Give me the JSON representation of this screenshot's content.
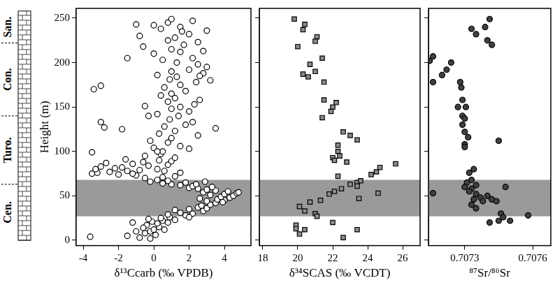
{
  "chart_data": [
    {
      "type": "scatter",
      "x_label": "δ¹³Ccarb (‰ VPDB)",
      "y_label": "Height (m)",
      "marker": "circle",
      "color": "#ffffff",
      "grid": false,
      "xlim": [
        -4.4,
        5.5
      ],
      "xticks": [
        -4,
        -2,
        0,
        2,
        4
      ],
      "ylim": [
        -6,
        261
      ],
      "yticks": [
        0,
        50,
        100,
        150,
        200,
        250
      ],
      "shaded_band": [
        27,
        68
      ],
      "x": [
        -3.6,
        -1.5,
        -0.8,
        -0.5,
        -0.2,
        0.0,
        0.3,
        -0.4,
        0.2,
        -0.1,
        0.5,
        0.8,
        1.2,
        -0.6,
        0.6,
        -1.0,
        0.1,
        0.4,
        -0.3,
        0.9,
        -1.2,
        -0.2,
        1.8,
        2.2,
        1.5,
        2.8,
        2.0,
        3.0,
        2.5,
        1.2,
        2.7,
        3.2,
        0.8,
        2.0,
        3.5,
        3.0,
        4.0,
        3.6,
        4.3,
        3.8,
        4.5,
        3.2,
        4.0,
        4.7,
        4.2,
        3.5,
        2.8,
        3.0,
        2.5,
        2.0,
        4.8,
        3.9,
        2.6,
        3.3,
        2.2,
        1.5,
        1.0,
        0.5,
        1.8,
        -0.2,
        0.8,
        2.4,
        2.9,
        0.2,
        -0.5,
        0.5,
        1.2,
        -1.0,
        -2.0,
        -3.5,
        -3.2,
        -2.5,
        -1.5,
        -0.8,
        0.2,
        -2.2,
        -1.8,
        -3.0,
        -0.3,
        0.8,
        1.5,
        0.6,
        -1.2,
        -2.7,
        -0.6,
        1.0,
        0.3,
        -1.6,
        -3.5,
        -0.5,
        0.4,
        1.2,
        -3.3,
        -1.2,
        0.5,
        0.0,
        1.5,
        2.0,
        0.8,
        -0.2,
        1.0,
        2.5,
        0.3,
        1.2,
        3.5,
        -2.8,
        -1.8,
        0.6,
        1.8,
        2.2,
        -3.0,
        0.9,
        1.4,
        0.2,
        2.0,
        1.0,
        1.5,
        -0.5,
        2.3,
        0.8,
        1.2,
        2.6,
        0.4,
        1.0,
        -3.4,
        -3.0,
        1.8,
        0.6,
        1.5,
        2.4,
        0.9,
        1.3,
        0.2,
        2.8,
        1.0,
        2.0,
        3.0,
        2.5,
        -1.5,
        1.3,
        0.5,
        2.2,
        0.0,
        1.5,
        2.8,
        1.0,
        -0.6,
        1.7,
        2.5,
        0.8,
        1.2,
        -0.8,
        2.0,
        3.0,
        0.4,
        1.5,
        -1.0,
        0.8,
        2.2,
        1.0,
        0.0,
        1.6,
        2.6,
        3.2,
        -0.3,
        0.2
      ],
      "values": [
        4,
        5,
        3,
        8,
        10,
        12,
        15,
        17,
        19,
        21,
        22,
        20,
        23,
        14,
        12,
        10,
        6,
        25,
        24,
        26,
        20,
        2,
        28,
        30,
        31,
        33,
        35,
        36,
        37,
        34,
        39,
        40,
        29,
        26,
        42,
        44,
        45,
        46,
        48,
        49,
        50,
        51,
        52,
        53,
        55,
        56,
        54,
        57,
        58,
        59,
        54,
        43,
        47,
        60,
        61,
        62,
        63,
        64,
        65,
        66,
        67,
        63,
        66,
        68,
        70,
        71,
        72,
        73,
        74,
        75,
        76,
        77,
        78,
        79,
        80,
        81,
        82,
        83,
        84,
        85,
        76,
        78,
        86,
        87,
        88,
        89,
        90,
        91,
        99,
        95,
        97,
        93,
        80,
        75,
        100,
        104,
        106,
        103,
        110,
        112,
        115,
        118,
        120,
        123,
        126,
        127,
        125,
        128,
        130,
        133,
        133,
        136,
        140,
        142,
        145,
        148,
        150,
        151,
        153,
        156,
        160,
        158,
        163,
        165,
        170,
        174,
        168,
        172,
        175,
        178,
        181,
        184,
        186,
        188,
        190,
        192,
        195,
        198,
        205,
        200,
        203,
        205,
        210,
        212,
        213,
        215,
        218,
        220,
        223,
        225,
        228,
        230,
        232,
        236,
        238,
        240,
        243,
        245,
        247,
        249,
        242,
        235,
        185,
        180,
        140,
        100
      ]
    },
    {
      "type": "scatter",
      "x_label": "δ³⁴SCAS (‰ VCDT)",
      "marker": "square",
      "color": "#8c8c8c",
      "grid": false,
      "tick_labels": "x",
      "xlim": [
        17.8,
        27
      ],
      "xticks": [
        18,
        20,
        22,
        24,
        26
      ],
      "ylim": [
        -6,
        261
      ],
      "yticks": [
        0,
        50,
        100,
        150,
        200,
        250
      ],
      "shaded_band": [
        27,
        68
      ],
      "x": [
        19.8,
        20.4,
        20.3,
        20.0,
        21.1,
        21.0,
        20.7,
        21.4,
        20.3,
        20.6,
        21.0,
        21.5,
        21.5,
        21.4,
        21.9,
        22.0,
        22.2,
        22.6,
        23.0,
        23.4,
        22.0,
        22.3,
        22.3,
        22.4,
        22.1,
        22.8,
        25.6,
        24.7,
        24.5,
        24.2,
        22.3,
        23.4,
        23.4,
        23.0,
        23.6,
        22.5,
        22.1,
        24.6,
        23.5,
        21.8,
        20.1,
        20.7,
        21.3,
        21.0,
        21.1,
        22.0,
        20.4,
        19.9,
        19.9,
        20.1,
        20.4,
        22.6,
        23.4
      ],
      "values": [
        249,
        243,
        237,
        218,
        229,
        224,
        198,
        205,
        187,
        184,
        190,
        178,
        158,
        138,
        145,
        150,
        155,
        122,
        118,
        113,
        93,
        107,
        100,
        95,
        90,
        88,
        86,
        82,
        77,
        74,
        72,
        65,
        61,
        63,
        67,
        58,
        55,
        53,
        47,
        52,
        38,
        43,
        45,
        30,
        27,
        20,
        33,
        17,
        13,
        7,
        12,
        3,
        12
      ]
    },
    {
      "type": "scatter",
      "x_label": "⁸⁷Sr/⁸⁶Sr",
      "marker": "circle",
      "color": "#404040",
      "grid": false,
      "tick_labels": "x",
      "xlim": [
        0.70714,
        0.70768
      ],
      "xticks": [
        0.7073,
        0.7076
      ],
      "ylim": [
        -6,
        261
      ],
      "yticks": [
        0,
        50,
        100,
        150,
        200,
        250
      ],
      "shaded_band": [
        27,
        68
      ],
      "x": [
        0.70741,
        0.70739,
        0.70733,
        0.70735,
        0.7074,
        0.70742,
        0.70716,
        0.707145,
        0.70724,
        0.70722,
        0.7072,
        0.70716,
        0.70728,
        0.707285,
        0.70729,
        0.70727,
        0.707305,
        0.70729,
        0.7073,
        0.70729,
        0.7073,
        0.707315,
        0.7073,
        0.7073,
        0.70745,
        0.70716,
        0.70734,
        0.70732,
        0.70733,
        0.70731,
        0.70735,
        0.7073,
        0.70733,
        0.70732,
        0.70735,
        0.7074,
        0.70737,
        0.70734,
        0.70742,
        0.70738,
        0.70733,
        0.70735,
        0.70744,
        0.70748,
        0.70746,
        0.70747,
        0.70745,
        0.7075,
        0.70758,
        0.70741
      ],
      "values": [
        249,
        240,
        238,
        232,
        225,
        220,
        207,
        202,
        200,
        192,
        186,
        178,
        178,
        172,
        158,
        150,
        150,
        140,
        137,
        130,
        122,
        116,
        108,
        105,
        112,
        53,
        80,
        76,
        68,
        65,
        62,
        60,
        58,
        55,
        52,
        50,
        48,
        46,
        46,
        44,
        40,
        36,
        44,
        60,
        30,
        26,
        22,
        22,
        28,
        20
      ]
    }
  ],
  "stratigraphy": [
    {
      "label": "Cen.",
      "from": 0,
      "to": 63
    },
    {
      "label": "Turo.",
      "from": 63,
      "to": 140
    },
    {
      "label": "Con.",
      "from": 140,
      "to": 222
    },
    {
      "label": "San.",
      "from": 222,
      "to": 258
    }
  ]
}
